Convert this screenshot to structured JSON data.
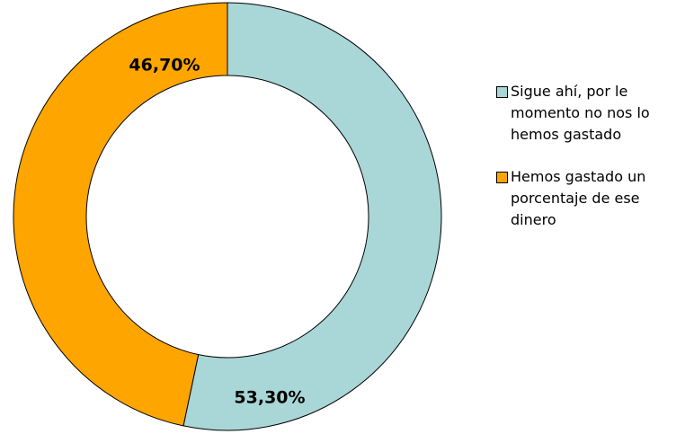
{
  "chart_data": {
    "type": "pie",
    "donut": true,
    "categories": [
      "Sigue ahí, por le momento no nos lo hemos gastado",
      "Hemos gastado un porcentaje de ese dinero"
    ],
    "values": [
      53.3,
      46.7
    ],
    "value_labels": [
      "53,30%",
      "46,70%"
    ],
    "colors": [
      "#a9d6d7",
      "#ffa500"
    ],
    "legend": "right"
  }
}
